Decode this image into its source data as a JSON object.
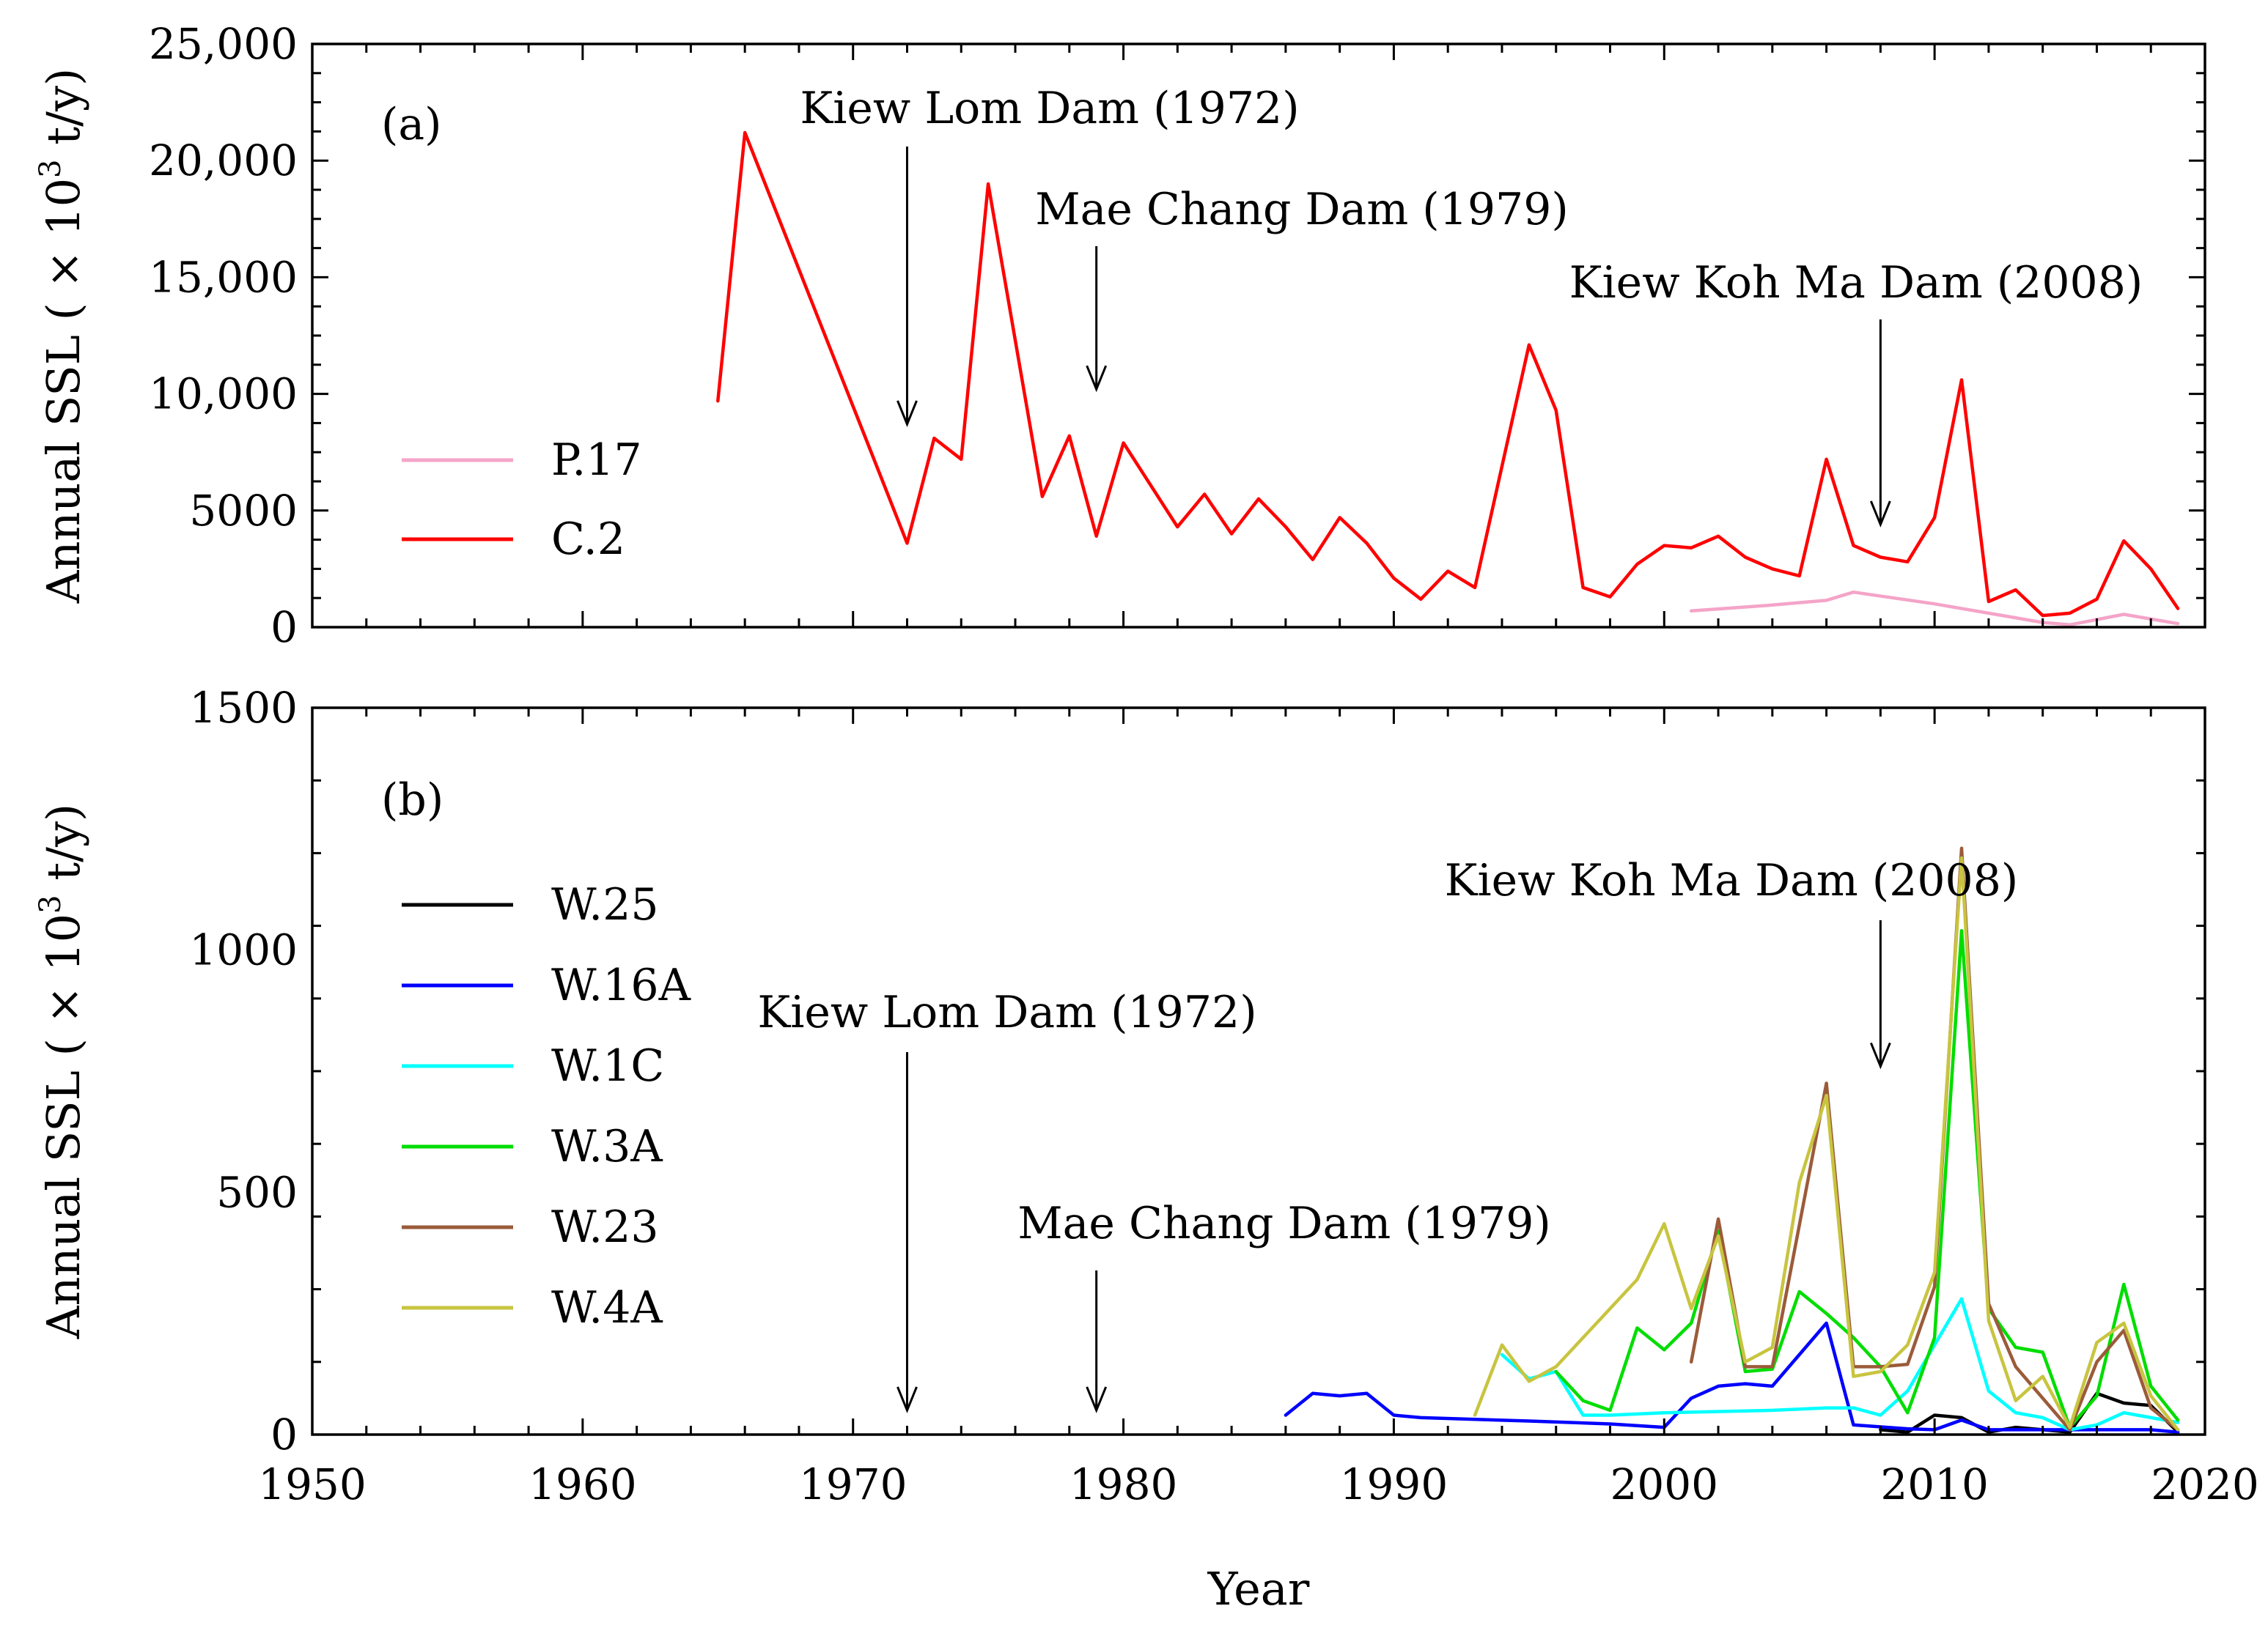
{
  "chart_data": [
    {
      "type": "line",
      "panel_label": "(a)",
      "ylabel_prefix": "Annual SSL ( × 10",
      "ylabel_exp": "3",
      "ylabel_suffix": " t/y)",
      "xlim": [
        1950,
        2020
      ],
      "ylim": [
        0,
        25000
      ],
      "yticks": [
        0,
        5000,
        10000,
        15000,
        20000,
        25000
      ],
      "ytick_labels": [
        "0",
        "5000",
        "10,000",
        "15,000",
        "20,000",
        "25,000"
      ],
      "legend_position": "left",
      "legend": [
        "P.17",
        "C.2"
      ],
      "annotations": [
        {
          "text": "Kiew Lom Dam (1972)",
          "x": 1972,
          "y_tip": 8700
        },
        {
          "text": "Mae Chang Dam (1979)",
          "x": 1979,
          "y_tip": 10200
        },
        {
          "text": "Kiew Koh Ma Dam (2008)",
          "x": 2008,
          "y_tip": 4400
        }
      ],
      "series": [
        {
          "name": "P.17",
          "color": "#f4a4c8",
          "x": [
            2001,
            2004,
            2006,
            2007,
            2010,
            2012,
            2014,
            2015,
            2017,
            2019
          ],
          "values": [
            700,
            950,
            1150,
            1500,
            1000,
            600,
            200,
            100,
            550,
            150
          ]
        },
        {
          "name": "C.2",
          "color": "#ff0000",
          "x": [
            1965,
            1966,
            1972,
            1973,
            1974,
            1975,
            1977,
            1978,
            1979,
            1980,
            1982,
            1983,
            1984,
            1985,
            1986,
            1987,
            1988,
            1989,
            1990,
            1991,
            1992,
            1993,
            1995,
            1996,
            1997,
            1998,
            1999,
            2000,
            2001,
            2002,
            2003,
            2004,
            2005,
            2006,
            2007,
            2008,
            2009,
            2010,
            2011,
            2012,
            2013,
            2014,
            2015,
            2016,
            2017,
            2018,
            2019
          ],
          "values": [
            9700,
            21200,
            3600,
            8100,
            7200,
            19000,
            5600,
            8200,
            3900,
            7900,
            4300,
            5700,
            4000,
            5500,
            4300,
            2900,
            4700,
            3600,
            2100,
            1200,
            2400,
            1700,
            12100,
            9300,
            1700,
            1300,
            2700,
            3500,
            3400,
            3900,
            3000,
            2500,
            2200,
            7200,
            3500,
            3000,
            2800,
            4700,
            10600,
            1100,
            1600,
            500,
            600,
            1200,
            3700,
            2500,
            800
          ]
        }
      ]
    },
    {
      "type": "line",
      "panel_label": "(b)",
      "xlabel": "Year",
      "ylabel_prefix": "Annual SSL ( × 10",
      "ylabel_exp": "3",
      "ylabel_suffix": " t/y)",
      "xlim": [
        1950,
        2020
      ],
      "ylim": [
        0,
        1500
      ],
      "xticks": [
        1950,
        1960,
        1970,
        1980,
        1990,
        2000,
        2010,
        2020
      ],
      "xtick_labels": [
        "1950",
        "1960",
        "1970",
        "1980",
        "1990",
        "2000",
        "2010",
        "2020"
      ],
      "yticks": [
        0,
        500,
        1000,
        1500
      ],
      "ytick_labels": [
        "0",
        "500",
        "1000",
        "1500"
      ],
      "legend_position": "left",
      "legend": [
        "W.25",
        "W.16A",
        "W.1C",
        "W.3A",
        "W.23",
        "W.4A"
      ],
      "annotations": [
        {
          "text": "Kiew Lom Dam (1972)",
          "x": 1972,
          "y_tip": 50
        },
        {
          "text": "Mae Chang Dam (1979)",
          "x": 1979,
          "y_tip": 50
        },
        {
          "text": "Kiew Koh Ma Dam (2008)",
          "x": 2008,
          "y_tip": 760
        }
      ],
      "series": [
        {
          "name": "W.25",
          "color": "#000000",
          "x": [
            2008,
            2009,
            2010,
            2011,
            2012,
            2013,
            2014,
            2015,
            2016,
            2017,
            2018,
            2019
          ],
          "values": [
            10,
            5,
            40,
            35,
            5,
            15,
            10,
            5,
            85,
            65,
            60,
            5
          ]
        },
        {
          "name": "W.16A",
          "color": "#0000ff",
          "x": [
            1986,
            1987,
            1988,
            1989,
            1990,
            1991,
            1995,
            1998,
            2000,
            2001,
            2002,
            2003,
            2004,
            2006,
            2007,
            2009,
            2010,
            2011,
            2012,
            2015,
            2018,
            2019
          ],
          "values": [
            40,
            85,
            80,
            85,
            40,
            35,
            28,
            22,
            15,
            75,
            100,
            105,
            100,
            230,
            20,
            12,
            10,
            30,
            10,
            10,
            10,
            5
          ]
        },
        {
          "name": "W.1C",
          "color": "#00ffff",
          "x": [
            1994,
            1995,
            1996,
            1997,
            1998,
            2000,
            2004,
            2006,
            2007,
            2008,
            2009,
            2011,
            2012,
            2013,
            2014,
            2015,
            2016,
            2017,
            2019
          ],
          "values": [
            165,
            115,
            130,
            40,
            40,
            45,
            50,
            55,
            55,
            40,
            90,
            280,
            90,
            45,
            35,
            10,
            20,
            45,
            25
          ]
        },
        {
          "name": "W.3A",
          "color": "#00dd00",
          "x": [
            1996,
            1997,
            1998,
            1999,
            2000,
            2001,
            2002,
            2003,
            2004,
            2005,
            2006,
            2007,
            2008,
            2009,
            2010,
            2011,
            2012,
            2013,
            2014,
            2015,
            2016,
            2017,
            2018,
            2019
          ],
          "values": [
            130,
            70,
            50,
            220,
            175,
            230,
            420,
            130,
            135,
            295,
            250,
            200,
            140,
            45,
            200,
            1040,
            260,
            180,
            170,
            15,
            80,
            310,
            100,
            30
          ]
        },
        {
          "name": "W.23",
          "color": "#9b5b3a",
          "x": [
            2001,
            2002,
            2003,
            2004,
            2006,
            2007,
            2008,
            2009,
            2010,
            2011,
            2012,
            2013,
            2014,
            2015,
            2016,
            2017,
            2018,
            2019
          ],
          "values": [
            150,
            445,
            140,
            140,
            725,
            140,
            140,
            145,
            305,
            1210,
            270,
            140,
            75,
            10,
            150,
            215,
            55,
            10
          ]
        },
        {
          "name": "W.4A",
          "color": "#c8c440",
          "x": [
            1993,
            1994,
            1995,
            1996,
            1999,
            2000,
            2001,
            2002,
            2003,
            2004,
            2005,
            2006,
            2007,
            2008,
            2009,
            2010,
            2011,
            2012,
            2013,
            2014,
            2015,
            2016,
            2017,
            2018,
            2019
          ],
          "values": [
            40,
            185,
            110,
            140,
            320,
            435,
            260,
            410,
            150,
            180,
            520,
            700,
            120,
            130,
            185,
            335,
            1190,
            235,
            70,
            120,
            15,
            190,
            230,
            80,
            10
          ]
        }
      ]
    }
  ]
}
